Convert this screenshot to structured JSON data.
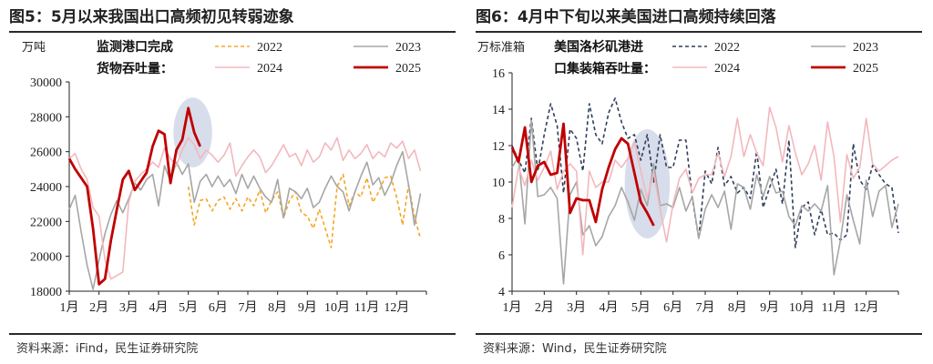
{
  "panels": [
    {
      "title": "图5：5月以来我国出口高频初见转弱迹象",
      "source": "资料来源：iFind，民生证券研究院",
      "chart_data": {
        "type": "line",
        "ylabel": "万吨",
        "legend_title": [
          "监测港口完成",
          "货物吞吐量："
        ],
        "ylim": [
          18000,
          30000
        ],
        "yticks": [
          18000,
          20000,
          22000,
          24000,
          26000,
          28000,
          30000
        ],
        "xlim": [
          1,
          13
        ],
        "xticks": [
          "1月",
          "2月",
          "3月",
          "4月",
          "5月",
          "6月",
          "7月",
          "8月",
          "9月",
          "10月",
          "11月",
          "12月"
        ],
        "highlight": {
          "x": 5.15,
          "y": 27100,
          "rx": 0.65,
          "ry": 2000
        },
        "series": [
          {
            "name": "2022",
            "color": "#f5a623",
            "dash": "4 3",
            "width": 1.6,
            "x": [
              5.0,
              5.2,
              5.4,
              5.6,
              5.8,
              6.0,
              6.2,
              6.4,
              6.6,
              6.8,
              7.0,
              7.2,
              7.4,
              7.6,
              7.8,
              8.0,
              8.2,
              8.4,
              8.6,
              8.8,
              9.0,
              9.2,
              9.4,
              9.6,
              9.8,
              10.0,
              10.2,
              10.4,
              10.6,
              10.8,
              11.0,
              11.2,
              11.4,
              11.6,
              11.8,
              12.0,
              12.2,
              12.4,
              12.6,
              12.8
            ],
            "y": [
              24000,
              21800,
              23200,
              23300,
              22600,
              23200,
              23400,
              22700,
              23300,
              22600,
              23400,
              22900,
              23800,
              22500,
              23200,
              23700,
              22200,
              23200,
              23700,
              22500,
              22300,
              21600,
              22700,
              21600,
              20500,
              24000,
              24700,
              22900,
              23700,
              23400,
              24500,
              23100,
              23700,
              24500,
              24600,
              23400,
              21800,
              24100,
              22300,
              21000
            ]
          },
          {
            "name": "2023",
            "color": "#a6a6a6",
            "dash": "",
            "width": 1.6,
            "x": [
              1.0,
              1.2,
              1.4,
              1.6,
              1.8,
              2.0,
              2.2,
              2.4,
              2.6,
              2.8,
              3.0,
              3.2,
              3.4,
              3.6,
              3.8,
              4.0,
              4.2,
              4.4,
              4.6,
              4.8,
              5.0,
              5.2,
              5.4,
              5.6,
              5.8,
              6.0,
              6.2,
              6.4,
              6.6,
              6.8,
              7.0,
              7.2,
              7.4,
              7.6,
              7.8,
              8.0,
              8.2,
              8.4,
              8.6,
              8.8,
              9.0,
              9.2,
              9.4,
              9.6,
              9.8,
              10.0,
              10.2,
              10.4,
              10.6,
              10.8,
              11.0,
              11.2,
              11.4,
              11.6,
              11.8,
              12.0,
              12.2,
              12.4,
              12.6,
              12.8
            ],
            "y": [
              22700,
              23500,
              21400,
              19500,
              18100,
              19800,
              21300,
              22400,
              23200,
              22500,
              23300,
              24200,
              23800,
              24400,
              24700,
              22900,
              25200,
              24300,
              25400,
              24700,
              25300,
              23100,
              24300,
              24700,
              24000,
              24600,
              24000,
              24400,
              23600,
              24700,
              23900,
              24600,
              23900,
              23400,
              23100,
              24400,
              22200,
              23900,
              23700,
              23300,
              23900,
              22800,
              23100,
              23900,
              24600,
              24000,
              23700,
              22600,
              23700,
              24600,
              25400,
              24100,
              24500,
              23500,
              24200,
              25200,
              26000,
              24100,
              21800,
              23600
            ]
          },
          {
            "name": "2024",
            "color": "#f2b8bd",
            "dash": "",
            "width": 1.6,
            "x": [
              1.0,
              1.2,
              1.4,
              1.6,
              1.8,
              2.0,
              2.2,
              2.4,
              2.6,
              2.8,
              3.0,
              3.2,
              3.4,
              3.6,
              3.8,
              4.0,
              4.2,
              4.4,
              4.6,
              4.8,
              5.0,
              5.2,
              5.4,
              5.6,
              5.8,
              6.0,
              6.2,
              6.4,
              6.6,
              6.8,
              7.0,
              7.2,
              7.4,
              7.6,
              7.8,
              8.0,
              8.2,
              8.4,
              8.6,
              8.8,
              9.0,
              9.2,
              9.4,
              9.6,
              9.8,
              10.0,
              10.2,
              10.4,
              10.6,
              10.8,
              11.0,
              11.2,
              11.4,
              11.6,
              11.8,
              12.0,
              12.2,
              12.4,
              12.6,
              12.8
            ],
            "y": [
              25600,
              25900,
              25000,
              24400,
              22800,
              22300,
              19800,
              18700,
              18900,
              19100,
              23100,
              24300,
              24700,
              25000,
              25400,
              25100,
              26200,
              25600,
              25200,
              26100,
              26800,
              26400,
              25600,
              26100,
              25800,
              25400,
              25800,
              26500,
              24600,
              25200,
              25700,
              26100,
              25700,
              24800,
              25200,
              25800,
              26400,
              25700,
              25900,
              25200,
              26100,
              25400,
              25700,
              26500,
              26100,
              26800,
              25500,
              26100,
              25600,
              25900,
              26400,
              25600,
              26000,
              25700,
              26500,
              26200,
              26600,
              25600,
              26100,
              24900
            ]
          },
          {
            "name": "2025",
            "color": "#c00000",
            "dash": "",
            "width": 2.8,
            "x": [
              1.0,
              1.2,
              1.4,
              1.6,
              1.8,
              2.0,
              2.2,
              2.4,
              2.6,
              2.8,
              3.0,
              3.2,
              3.4,
              3.6,
              3.8,
              4.0,
              4.2,
              4.4,
              4.6,
              4.8,
              5.0,
              5.2,
              5.4
            ],
            "y": [
              25600,
              25000,
              24500,
              24000,
              21600,
              18400,
              18700,
              20900,
              22700,
              24400,
              24900,
              23800,
              24300,
              24800,
              26300,
              27200,
              27000,
              24200,
              26100,
              26700,
              28500,
              27100,
              26300
            ]
          }
        ]
      }
    },
    {
      "title": "图6：4月中下旬以来美国进口高频持续回落",
      "source": "资料来源：Wind，民生证券研究院",
      "chart_data": {
        "type": "line",
        "ylabel": "万标准箱",
        "legend_title": [
          "美国洛杉矶港进",
          "口集装箱吞吐量："
        ],
        "ylim": [
          4,
          16
        ],
        "yticks": [
          4,
          6,
          8,
          10,
          12,
          14,
          16
        ],
        "xlim": [
          1,
          13
        ],
        "xticks": [
          "1月",
          "2月",
          "3月",
          "4月",
          "5月",
          "6月",
          "7月",
          "8月",
          "9月",
          "10月",
          "11月",
          "12月"
        ],
        "highlight": {
          "x": 5.2,
          "y": 9.9,
          "rx": 0.7,
          "ry": 3.0
        },
        "series": [
          {
            "name": "2022",
            "color": "#2f3e5c",
            "dash": "4 3",
            "width": 1.6,
            "x": [
              1.0,
              1.2,
              1.4,
              1.6,
              1.8,
              2.0,
              2.2,
              2.4,
              2.6,
              2.8,
              3.0,
              3.2,
              3.4,
              3.6,
              3.8,
              4.0,
              4.2,
              4.4,
              4.6,
              4.8,
              5.0,
              5.2,
              5.4,
              5.6,
              5.8,
              6.0,
              6.2,
              6.4,
              6.6,
              6.8,
              7.0,
              7.2,
              7.4,
              7.6,
              7.8,
              8.0,
              8.2,
              8.4,
              8.6,
              8.8,
              9.0,
              9.2,
              9.4,
              9.6,
              9.8,
              10.0,
              10.2,
              10.4,
              10.6,
              10.8,
              11.0,
              11.2,
              11.4,
              11.6,
              11.8,
              12.0,
              12.2,
              12.4,
              12.6,
              12.8,
              13.0
            ],
            "y": [
              12.0,
              11.2,
              10.5,
              13.5,
              10.6,
              12.6,
              14.3,
              13.1,
              9.4,
              12.9,
              12.4,
              10.6,
              14.3,
              12.6,
              12.1,
              13.8,
              14.6,
              13.3,
              12.4,
              12.6,
              11.2,
              12.6,
              10.0,
              12.6,
              10.8,
              10.8,
              12.3,
              12.3,
              9.1,
              6.9,
              10.6,
              9.9,
              11.9,
              9.8,
              10.3,
              9.4,
              9.7,
              9.1,
              11.7,
              8.6,
              9.7,
              10.7,
              8.8,
              12.3,
              6.4,
              8.6,
              8.9,
              7.1,
              8.5,
              7.1,
              7.2,
              6.8,
              7.1,
              12.1,
              10.1,
              9.6,
              10.9,
              10.4,
              9.9,
              9.7,
              7.2
            ]
          },
          {
            "name": "2023",
            "color": "#a6a6a6",
            "dash": "",
            "width": 1.6,
            "x": [
              1.0,
              1.2,
              1.4,
              1.6,
              1.8,
              2.0,
              2.2,
              2.4,
              2.6,
              2.8,
              3.0,
              3.2,
              3.4,
              3.6,
              3.8,
              4.0,
              4.2,
              4.4,
              4.6,
              4.8,
              5.0,
              5.2,
              5.4,
              5.6,
              5.8,
              6.0,
              6.2,
              6.4,
              6.6,
              6.8,
              7.0,
              7.2,
              7.4,
              7.6,
              7.8,
              8.0,
              8.2,
              8.4,
              8.6,
              8.8,
              9.0,
              9.2,
              9.4,
              9.6,
              9.8,
              10.0,
              10.2,
              10.4,
              10.6,
              10.8,
              11.0,
              11.2,
              11.4,
              11.6,
              11.8,
              12.0,
              12.2,
              12.4,
              12.6,
              12.8,
              13.0
            ],
            "y": [
              10.8,
              11.4,
              7.7,
              13.4,
              9.2,
              9.3,
              9.7,
              9.1,
              4.4,
              9.3,
              10.0,
              7.1,
              7.6,
              6.5,
              7.0,
              8.1,
              8.7,
              9.7,
              8.9,
              7.9,
              9.6,
              8.7,
              11.0,
              8.7,
              8.8,
              8.6,
              9.7,
              8.4,
              9.2,
              6.9,
              8.5,
              9.3,
              8.6,
              9.5,
              7.4,
              9.9,
              9.7,
              8.5,
              10.4,
              9.2,
              10.3,
              9.4,
              9.5,
              8.1,
              7.6,
              8.7,
              8.4,
              8.8,
              8.4,
              9.8,
              4.9,
              6.8,
              9.3,
              7.9,
              6.6,
              10.1,
              8.1,
              9.5,
              9.8,
              7.5,
              8.8
            ]
          },
          {
            "name": "2024",
            "color": "#f2b8bd",
            "dash": "",
            "width": 1.6,
            "x": [
              1.0,
              1.2,
              1.4,
              1.6,
              1.8,
              2.0,
              2.2,
              2.4,
              2.6,
              2.8,
              3.0,
              3.2,
              3.4,
              3.6,
              3.8,
              4.0,
              4.2,
              4.4,
              4.6,
              4.8,
              5.0,
              5.2,
              5.4,
              5.6,
              5.8,
              6.0,
              6.2,
              6.4,
              6.6,
              6.8,
              7.0,
              7.2,
              7.4,
              7.6,
              7.8,
              8.0,
              8.2,
              8.4,
              8.6,
              8.8,
              9.0,
              9.2,
              9.4,
              9.6,
              9.8,
              10.0,
              10.2,
              10.4,
              10.6,
              10.8,
              11.0,
              11.2,
              11.4,
              11.6,
              11.8,
              12.0,
              12.2,
              12.4,
              12.6,
              12.8,
              13.0
            ],
            "y": [
              8.6,
              10.8,
              9.8,
              11.2,
              10.1,
              10.8,
              11.7,
              9.6,
              10.6,
              11.0,
              10.6,
              6.0,
              10.6,
              9.7,
              10.0,
              10.0,
              11.2,
              10.8,
              11.3,
              12.2,
              10.6,
              9.1,
              10.5,
              8.5,
              6.7,
              8.8,
              10.2,
              10.7,
              9.4,
              10.2,
              10.4,
              10.4,
              11.6,
              10.3,
              11.4,
              13.5,
              11.4,
              12.6,
              11.6,
              10.9,
              14.1,
              13.0,
              11.1,
              13.1,
              11.6,
              10.4,
              11.0,
              12.0,
              10.1,
              13.3,
              11.4,
              7.8,
              11.5,
              10.2,
              10.8,
              13.5,
              11.0,
              10.6,
              10.9,
              11.2,
              11.4
            ]
          },
          {
            "name": "2025",
            "color": "#c00000",
            "dash": "",
            "width": 2.8,
            "x": [
              1.0,
              1.2,
              1.4,
              1.6,
              1.8,
              2.0,
              2.2,
              2.4,
              2.6,
              2.8,
              3.0,
              3.2,
              3.4,
              3.6,
              3.8,
              4.0,
              4.2,
              4.4,
              4.6,
              4.8,
              5.0,
              5.2,
              5.4
            ],
            "y": [
              11.9,
              11.1,
              13.0,
              10.0,
              10.9,
              11.1,
              10.4,
              10.5,
              13.2,
              8.3,
              9.1,
              9.0,
              9.0,
              7.8,
              9.6,
              10.8,
              11.8,
              12.4,
              12.1,
              10.5,
              8.9,
              8.3,
              7.6
            ]
          }
        ]
      }
    }
  ]
}
